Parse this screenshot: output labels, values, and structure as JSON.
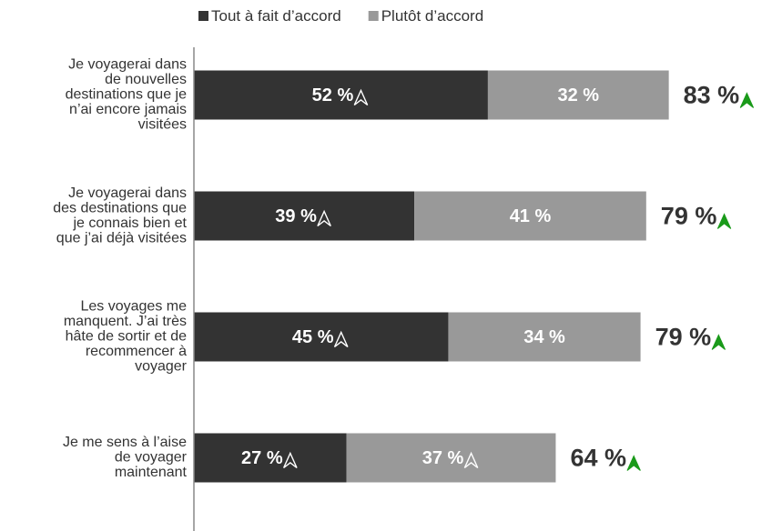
{
  "chart_data": {
    "type": "stacked-barh",
    "categories": [
      [
        "Je voyagerai dans",
        "de nouvelles",
        "destinations que je",
        "n’ai encore jamais",
        "visitées"
      ],
      [
        "Je voyagerai dans",
        "des destinations que",
        "je connais bien et",
        "que j’ai déjà visitées"
      ],
      [
        "Les voyages me",
        "manquent. J’ai très",
        "hâte de sortir et de",
        "recommencer à",
        "voyager"
      ],
      [
        "Je me sens à l’aise",
        "de voyager",
        "maintenant"
      ]
    ],
    "series": [
      {
        "name": "Tout à fait d’accord",
        "color": "#333333",
        "values": [
          52,
          39,
          45,
          27
        ],
        "value_labels": [
          "52 %",
          "39 %",
          "45 %",
          "27 %"
        ],
        "arrow": [
          true,
          true,
          true,
          true
        ]
      },
      {
        "name": "Plutôt d’accord",
        "color": "#999999",
        "values": [
          32,
          41,
          34,
          37
        ],
        "value_labels": [
          "32 %",
          "41 %",
          "34 %",
          "37 %"
        ],
        "arrow": [
          false,
          false,
          false,
          true
        ]
      }
    ],
    "totals": {
      "values": [
        83,
        79,
        79,
        64
      ],
      "value_labels": [
        "83 %",
        "79 %",
        "79 %",
        "64 %"
      ],
      "arrow": [
        true,
        true,
        true,
        true
      ],
      "arrow_color": "#1a9a1a"
    },
    "xlim": [
      0,
      100
    ],
    "legend": "top"
  }
}
